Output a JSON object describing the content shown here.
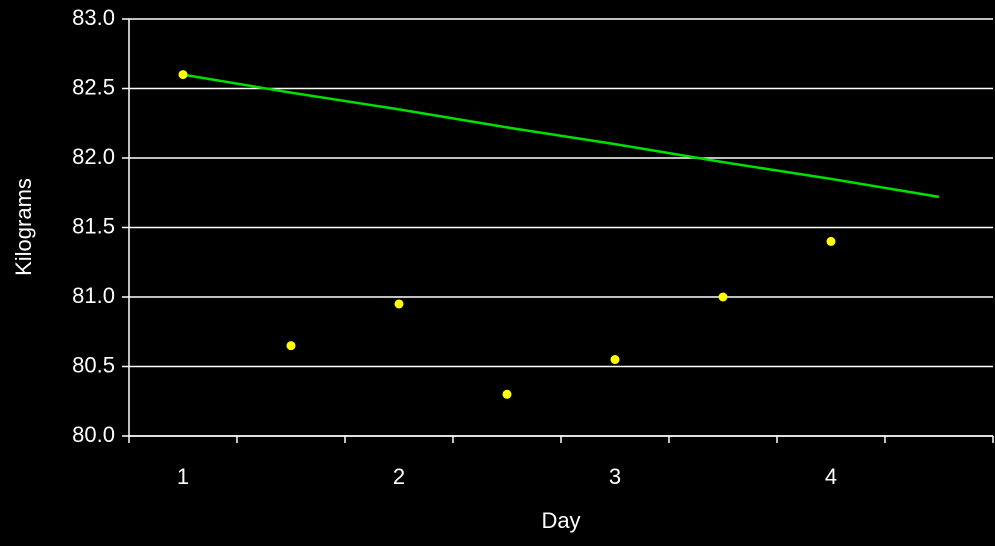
{
  "chart_data": {
    "type": "line",
    "x_label": "Day",
    "y_label": "Kilograms",
    "categories": [
      "1",
      null,
      "2",
      null,
      "3",
      null,
      "4",
      null
    ],
    "series": [
      {
        "mode": "markers",
        "color": "#ffff00",
        "values": [
          82.6,
          80.65,
          80.95,
          80.3,
          80.55,
          81.0,
          81.4,
          null
        ]
      },
      {
        "mode": "line",
        "color": "#00e000",
        "values": [
          82.6,
          82.47,
          82.35,
          82.22,
          82.1,
          81.97,
          81.85,
          81.72
        ]
      }
    ],
    "ylim": [
      80,
      83
    ],
    "yticks": [
      {
        "value": 80,
        "label": "80.0"
      },
      {
        "value": 80.5,
        "label": "80.5"
      },
      {
        "value": 81,
        "label": "81.0"
      },
      {
        "value": 81.5,
        "label": "81.5"
      },
      {
        "value": 82,
        "label": "82.0"
      },
      {
        "value": 82.5,
        "label": "82.5"
      },
      {
        "value": 83,
        "label": "83.0"
      }
    ],
    "grid": true
  }
}
